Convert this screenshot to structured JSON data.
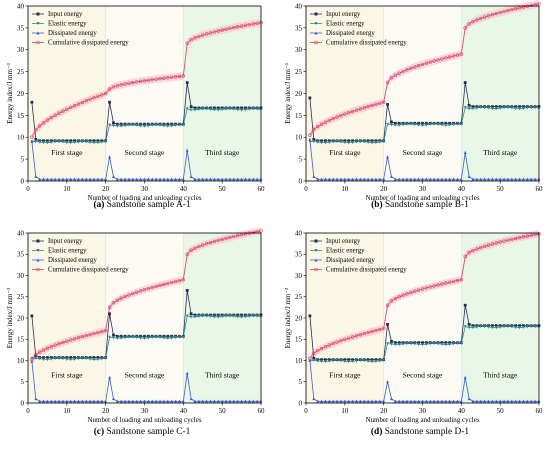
{
  "figure": {
    "shared": {
      "xlabel": "Number of loading and unloading cycles",
      "ylabel": "Energy index/J mm⁻³",
      "xlim": [
        0,
        60
      ],
      "ylim": [
        0,
        40
      ],
      "xticks": [
        0,
        10,
        20,
        30,
        40,
        50,
        60
      ],
      "yticks": [
        0,
        5,
        10,
        15,
        20,
        25,
        30,
        35,
        40
      ],
      "stages": [
        {
          "label": "First stage",
          "from": 0,
          "to": 20,
          "color": "#fbf7e6"
        },
        {
          "label": "Second stage",
          "from": 20,
          "to": 40,
          "color": "#fbfbf4"
        },
        {
          "label": "Third stage",
          "from": 40,
          "to": 60,
          "color": "#e9f7e6"
        }
      ],
      "series_meta": [
        {
          "name": "Input energy",
          "color": "#2b2b55",
          "marker": "square"
        },
        {
          "name": "Elastic energy",
          "color": "#2a8b8b",
          "marker": "triangle-down"
        },
        {
          "name": "Dissipated energy",
          "color": "#3a5fd6",
          "marker": "triangle-up"
        },
        {
          "name": "Cumulative dissipated energy",
          "color": "#d94a6a",
          "marker": "circle"
        }
      ]
    },
    "panels": [
      {
        "letter": "(a)",
        "caption": "Sandstone sample A-1",
        "params": {
          "input_peaks": [
            18,
            18,
            22.5
          ],
          "elastic": [
            9,
            12.8,
            16.5
          ],
          "dissipated_peaks": [
            9,
            5.5,
            7
          ],
          "dissipated_base": 0.4,
          "cum_breaks": [
            10,
            20,
            21,
            24,
            31.5,
            36.2
          ]
        }
      },
      {
        "letter": "(b)",
        "caption": "Sandstone sample B-1",
        "params": {
          "input_peaks": [
            19,
            17.5,
            22.5
          ],
          "elastic": [
            9,
            13,
            16.8
          ],
          "dissipated_peaks": [
            9.5,
            5.5,
            6.5
          ],
          "dissipated_base": 0.4,
          "cum_breaks": [
            10.5,
            18,
            22.5,
            29,
            35,
            40.5
          ]
        }
      },
      {
        "letter": "(c)",
        "caption": "Sandstone sample C-1",
        "params": {
          "input_peaks": [
            20.5,
            21,
            26.5
          ],
          "elastic": [
            10.5,
            15.5,
            20.5
          ],
          "dissipated_peaks": [
            9.8,
            6,
            7
          ],
          "dissipated_base": 0.4,
          "cum_breaks": [
            10.2,
            17,
            22.5,
            29,
            35,
            40.5
          ]
        }
      },
      {
        "letter": "(d)",
        "caption": "Sandstone sample D-1",
        "params": {
          "input_peaks": [
            20.5,
            18.5,
            23
          ],
          "elastic": [
            10,
            14,
            18
          ],
          "dissipated_peaks": [
            10,
            5,
            6
          ],
          "dissipated_base": 0.4,
          "cum_breaks": [
            10.5,
            17.5,
            23,
            29,
            34.5,
            39.8
          ]
        }
      }
    ]
  },
  "chart_data": [
    {
      "type": "line",
      "title": "Sandstone sample A-1",
      "xlabel": "Number of loading and unloading cycles",
      "ylabel": "Energy index/J mm⁻³",
      "xlim": [
        0,
        60
      ],
      "ylim": [
        0,
        40
      ],
      "grid": false,
      "legend": "top-left",
      "series": [
        {
          "name": "Input energy"
        },
        {
          "name": "Elastic energy"
        },
        {
          "name": "Dissipated energy"
        },
        {
          "name": "Cumulative dissipated energy"
        }
      ]
    },
    {
      "type": "line",
      "title": "Sandstone sample B-1",
      "xlabel": "Number of loading and unloading cycles",
      "ylabel": "Energy index/J mm⁻³",
      "xlim": [
        0,
        60
      ],
      "ylim": [
        0,
        40
      ],
      "grid": false,
      "legend": "top-left",
      "series": [
        {
          "name": "Input energy"
        },
        {
          "name": "Elastic energy"
        },
        {
          "name": "Dissipated energy"
        },
        {
          "name": "Cumulative dissipated energy"
        }
      ]
    },
    {
      "type": "line",
      "title": "Sandstone sample C-1",
      "xlabel": "Number of loading and unloading cycles",
      "ylabel": "Energy index/J mm⁻³",
      "xlim": [
        0,
        60
      ],
      "ylim": [
        0,
        40
      ],
      "grid": false,
      "legend": "top-left",
      "series": [
        {
          "name": "Input energy"
        },
        {
          "name": "Elastic energy"
        },
        {
          "name": "Dissipated energy"
        },
        {
          "name": "Cumulative dissipated energy"
        }
      ]
    },
    {
      "type": "line",
      "title": "Sandstone sample D-1",
      "xlabel": "Number of loading and unloading cycles",
      "ylabel": "Energy index/J mm⁻³",
      "xlim": [
        0,
        60
      ],
      "ylim": [
        0,
        40
      ],
      "grid": false,
      "legend": "top-left",
      "series": [
        {
          "name": "Input energy"
        },
        {
          "name": "Elastic energy"
        },
        {
          "name": "Dissipated energy"
        },
        {
          "name": "Cumulative dissipated energy"
        }
      ]
    }
  ]
}
